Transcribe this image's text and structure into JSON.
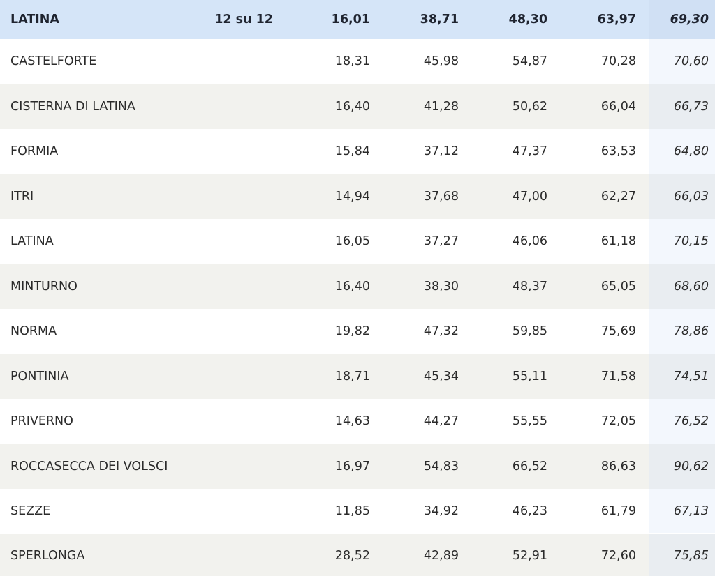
{
  "header": {
    "name": "LATINA",
    "sezioni": "12 su 12",
    "v1": "16,01",
    "v2": "38,71",
    "v3": "48,30",
    "v4": "63,97",
    "prev": "69,30"
  },
  "rows": [
    {
      "name": "CASTELFORTE",
      "v1": "18,31",
      "v2": "45,98",
      "v3": "54,87",
      "v4": "70,28",
      "prev": "70,60"
    },
    {
      "name": "CISTERNA DI LATINA",
      "v1": "16,40",
      "v2": "41,28",
      "v3": "50,62",
      "v4": "66,04",
      "prev": "66,73"
    },
    {
      "name": "FORMIA",
      "v1": "15,84",
      "v2": "37,12",
      "v3": "47,37",
      "v4": "63,53",
      "prev": "64,80"
    },
    {
      "name": "ITRI",
      "v1": "14,94",
      "v2": "37,68",
      "v3": "47,00",
      "v4": "62,27",
      "prev": "66,03"
    },
    {
      "name": "LATINA",
      "v1": "16,05",
      "v2": "37,27",
      "v3": "46,06",
      "v4": "61,18",
      "prev": "70,15"
    },
    {
      "name": "MINTURNO",
      "v1": "16,40",
      "v2": "38,30",
      "v3": "48,37",
      "v4": "65,05",
      "prev": "68,60"
    },
    {
      "name": "NORMA",
      "v1": "19,82",
      "v2": "47,32",
      "v3": "59,85",
      "v4": "75,69",
      "prev": "78,86"
    },
    {
      "name": "PONTINIA",
      "v1": "18,71",
      "v2": "45,34",
      "v3": "55,11",
      "v4": "71,58",
      "prev": "74,51"
    },
    {
      "name": "PRIVERNO",
      "v1": "14,63",
      "v2": "44,27",
      "v3": "55,55",
      "v4": "72,05",
      "prev": "76,52"
    },
    {
      "name": "ROCCASECCA DEI VOLSCI",
      "v1": "16,97",
      "v2": "54,83",
      "v3": "66,52",
      "v4": "86,63",
      "prev": "90,62"
    },
    {
      "name": "SEZZE",
      "v1": "11,85",
      "v2": "34,92",
      "v3": "46,23",
      "v4": "61,79",
      "prev": "67,13"
    },
    {
      "name": "SPERLONGA",
      "v1": "28,52",
      "v2": "42,89",
      "v3": "52,91",
      "v4": "72,60",
      "prev": "75,85"
    }
  ]
}
